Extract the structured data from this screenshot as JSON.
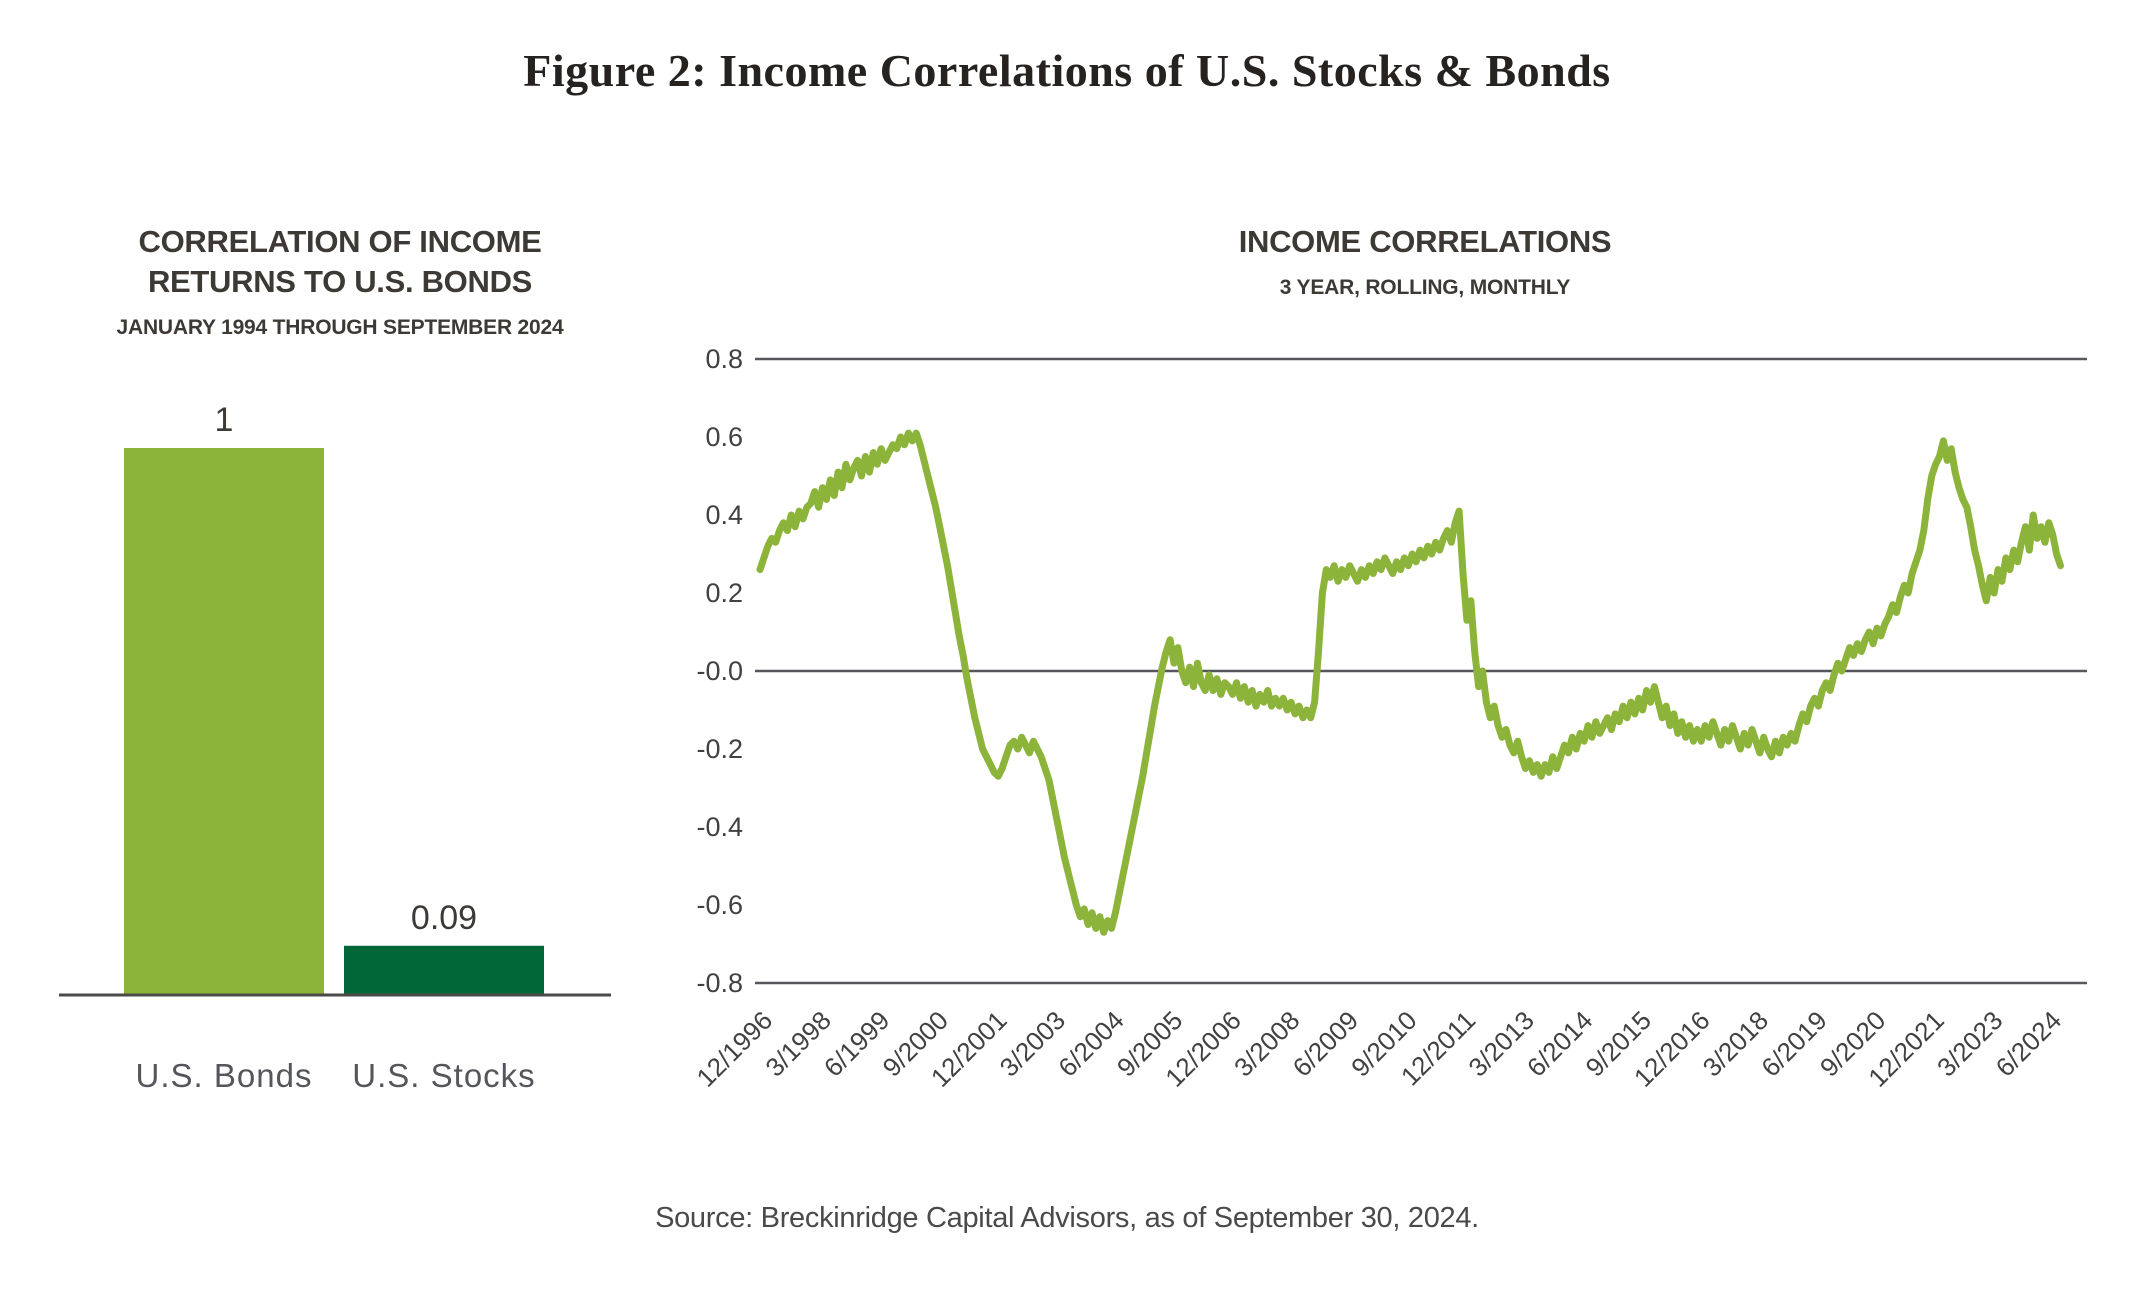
{
  "figure": {
    "title": "Figure 2: Income Correlations of U.S. Stocks & Bonds"
  },
  "source": "Source: Breckinridge Capital Advisors, as of September 30, 2024.",
  "colors": {
    "light_green": "#8cb43a",
    "dark_green": "#006838",
    "grid": "#56575a",
    "baseline": "#4a4a4b",
    "heading_text": "#3d3935",
    "axis_text": "#414042",
    "category_text": "#54565b"
  },
  "chart_data": [
    {
      "type": "bar",
      "title": "CORRELATION OF INCOME RETURNS TO U.S. BONDS",
      "title_lines": [
        "CORRELATION OF INCOME",
        "RETURNS TO U.S. BONDS"
      ],
      "subtitle": "JANUARY 1994 THROUGH SEPTEMBER 2024",
      "categories": [
        "U.S. Bonds",
        "U.S. Stocks"
      ],
      "values": [
        1,
        0.09
      ],
      "value_labels": [
        "1",
        "0.09"
      ],
      "bar_colors": [
        "#8cb43a",
        "#006838"
      ],
      "ylim": [
        0,
        1
      ],
      "grid": "off",
      "legend": "none"
    },
    {
      "type": "line",
      "title": "INCOME CORRELATIONS",
      "subtitle": "3 YEAR, ROLLING, MONTHLY",
      "ylim": [
        -0.8,
        0.8
      ],
      "gridlines_at": [
        0.8,
        0,
        -0.8
      ],
      "grid": "horizontal (0.8, 0.0, -0.8 only)",
      "legend": "none",
      "y_tick_labels": [
        "0.8",
        "0.6",
        "0.4",
        "0.2",
        "-0.0",
        "-0.2",
        "-0.4",
        "-0.6",
        "-0.8"
      ],
      "x_tick_labels": [
        "12/1996",
        "3/1998",
        "6/1999",
        "9/2000",
        "12/2001",
        "3/2003",
        "6/2004",
        "9/2005",
        "12/2006",
        "3/2008",
        "6/2009",
        "9/2010",
        "12/2011",
        "3/2013",
        "6/2014",
        "9/2015",
        "12/2016",
        "3/2018",
        "6/2019",
        "9/2020",
        "12/2021",
        "3/2023",
        "6/2024"
      ],
      "x_tick_interval_months": 15,
      "series": [
        {
          "name": "3-year rolling monthly income correlation of U.S. stocks to U.S. bonds",
          "color": "#8cb43a",
          "start": "12/1996",
          "end": "9/2024",
          "frequency": "monthly",
          "values": [
            0.26,
            0.29,
            0.32,
            0.34,
            0.33,
            0.36,
            0.38,
            0.36,
            0.4,
            0.37,
            0.41,
            0.39,
            0.42,
            0.43,
            0.46,
            0.42,
            0.47,
            0.44,
            0.49,
            0.45,
            0.51,
            0.47,
            0.53,
            0.49,
            0.52,
            0.54,
            0.5,
            0.55,
            0.51,
            0.56,
            0.53,
            0.57,
            0.54,
            0.56,
            0.58,
            0.57,
            0.6,
            0.58,
            0.61,
            0.59,
            0.61,
            0.58,
            0.54,
            0.5,
            0.46,
            0.42,
            0.37,
            0.32,
            0.27,
            0.21,
            0.15,
            0.09,
            0.04,
            -0.02,
            -0.07,
            -0.12,
            -0.16,
            -0.2,
            -0.22,
            -0.24,
            -0.26,
            -0.27,
            -0.25,
            -0.22,
            -0.19,
            -0.18,
            -0.2,
            -0.17,
            -0.19,
            -0.21,
            -0.18,
            -0.2,
            -0.22,
            -0.25,
            -0.28,
            -0.33,
            -0.38,
            -0.43,
            -0.48,
            -0.52,
            -0.56,
            -0.6,
            -0.63,
            -0.61,
            -0.65,
            -0.62,
            -0.66,
            -0.63,
            -0.67,
            -0.64,
            -0.66,
            -0.62,
            -0.57,
            -0.52,
            -0.47,
            -0.42,
            -0.37,
            -0.32,
            -0.27,
            -0.21,
            -0.15,
            -0.09,
            -0.04,
            0.01,
            0.05,
            0.08,
            0.02,
            0.06,
            0.0,
            -0.03,
            0.01,
            -0.04,
            0.02,
            -0.03,
            -0.05,
            -0.01,
            -0.05,
            -0.02,
            -0.06,
            -0.03,
            -0.04,
            -0.06,
            -0.03,
            -0.07,
            -0.04,
            -0.08,
            -0.05,
            -0.09,
            -0.06,
            -0.08,
            -0.05,
            -0.09,
            -0.07,
            -0.09,
            -0.07,
            -0.1,
            -0.08,
            -0.11,
            -0.09,
            -0.12,
            -0.1,
            -0.12,
            -0.08,
            0.05,
            0.2,
            0.26,
            0.24,
            0.27,
            0.23,
            0.26,
            0.24,
            0.27,
            0.25,
            0.23,
            0.26,
            0.24,
            0.27,
            0.25,
            0.28,
            0.26,
            0.29,
            0.27,
            0.25,
            0.28,
            0.26,
            0.29,
            0.27,
            0.3,
            0.28,
            0.31,
            0.29,
            0.32,
            0.3,
            0.33,
            0.31,
            0.34,
            0.36,
            0.33,
            0.38,
            0.41,
            0.25,
            0.13,
            0.18,
            0.05,
            -0.04,
            0.0,
            -0.08,
            -0.12,
            -0.09,
            -0.14,
            -0.17,
            -0.15,
            -0.19,
            -0.21,
            -0.18,
            -0.22,
            -0.25,
            -0.23,
            -0.26,
            -0.24,
            -0.27,
            -0.24,
            -0.26,
            -0.22,
            -0.25,
            -0.22,
            -0.19,
            -0.21,
            -0.17,
            -0.2,
            -0.16,
            -0.18,
            -0.14,
            -0.17,
            -0.13,
            -0.16,
            -0.14,
            -0.12,
            -0.15,
            -0.11,
            -0.13,
            -0.09,
            -0.12,
            -0.08,
            -0.11,
            -0.07,
            -0.1,
            -0.05,
            -0.08,
            -0.04,
            -0.08,
            -0.12,
            -0.09,
            -0.14,
            -0.11,
            -0.16,
            -0.13,
            -0.17,
            -0.14,
            -0.18,
            -0.15,
            -0.18,
            -0.14,
            -0.17,
            -0.13,
            -0.16,
            -0.19,
            -0.15,
            -0.18,
            -0.14,
            -0.17,
            -0.2,
            -0.16,
            -0.19,
            -0.15,
            -0.18,
            -0.21,
            -0.17,
            -0.2,
            -0.22,
            -0.18,
            -0.21,
            -0.17,
            -0.19,
            -0.16,
            -0.18,
            -0.14,
            -0.11,
            -0.13,
            -0.09,
            -0.07,
            -0.09,
            -0.05,
            -0.03,
            -0.05,
            -0.01,
            0.02,
            0.0,
            0.03,
            0.06,
            0.04,
            0.07,
            0.05,
            0.08,
            0.1,
            0.07,
            0.11,
            0.09,
            0.12,
            0.14,
            0.17,
            0.15,
            0.19,
            0.22,
            0.2,
            0.25,
            0.28,
            0.31,
            0.36,
            0.44,
            0.5,
            0.53,
            0.55,
            0.59,
            0.54,
            0.57,
            0.51,
            0.47,
            0.44,
            0.42,
            0.37,
            0.31,
            0.27,
            0.22,
            0.18,
            0.24,
            0.2,
            0.26,
            0.23,
            0.29,
            0.26,
            0.31,
            0.28,
            0.33,
            0.37,
            0.31,
            0.4,
            0.34,
            0.37,
            0.33,
            0.38,
            0.35,
            0.3,
            0.27
          ]
        }
      ]
    }
  ]
}
